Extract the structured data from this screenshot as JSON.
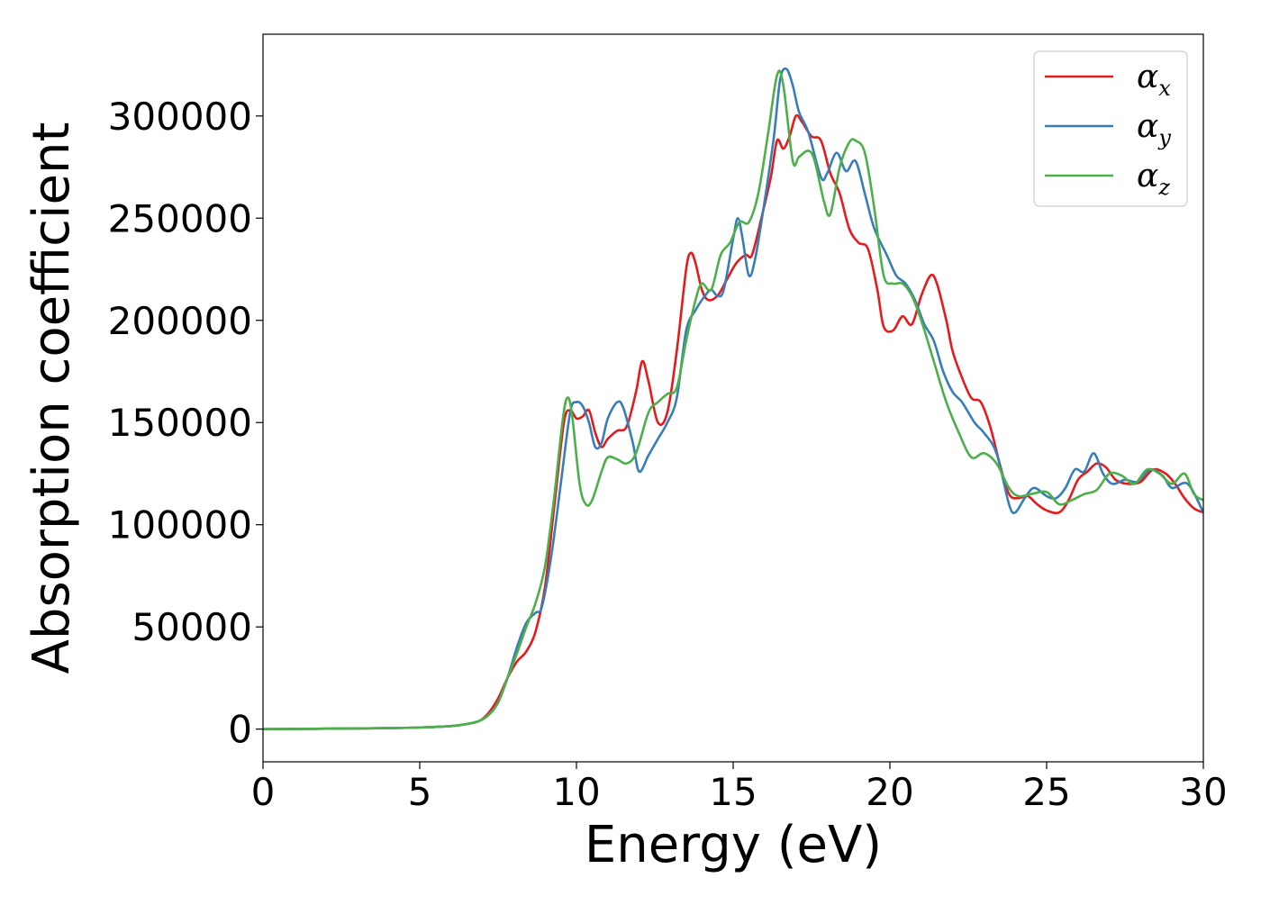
{
  "chart_data": {
    "type": "line",
    "title": "",
    "xlabel": "Energy (eV)",
    "ylabel": "Absorption coefficient",
    "xlim": [
      0,
      30
    ],
    "ylim": [
      -16000,
      340000
    ],
    "xticks": [
      0,
      5,
      10,
      15,
      20,
      25,
      30
    ],
    "yticks": [
      0,
      50000,
      100000,
      150000,
      200000,
      250000,
      300000
    ],
    "grid": false,
    "legend": {
      "placement": "top-right"
    },
    "series": [
      {
        "name": "αx",
        "symbol": "α",
        "subscript": "x",
        "color": "#e41a1c",
        "points": [
          [
            0,
            0
          ],
          [
            2,
            200
          ],
          [
            4,
            500
          ],
          [
            5,
            800
          ],
          [
            6,
            1500
          ],
          [
            6.5,
            2500
          ],
          [
            6.9,
            4000
          ],
          [
            7.2,
            8000
          ],
          [
            7.5,
            15000
          ],
          [
            7.8,
            25000
          ],
          [
            8.1,
            33000
          ],
          [
            8.4,
            38000
          ],
          [
            8.7,
            48000
          ],
          [
            9,
            70000
          ],
          [
            9.3,
            110000
          ],
          [
            9.6,
            150000
          ],
          [
            9.8,
            156000
          ],
          [
            10,
            152000
          ],
          [
            10.2,
            153000
          ],
          [
            10.4,
            156000
          ],
          [
            10.6,
            145000
          ],
          [
            10.8,
            138000
          ],
          [
            11,
            142000
          ],
          [
            11.3,
            146000
          ],
          [
            11.6,
            148000
          ],
          [
            11.9,
            165000
          ],
          [
            12.1,
            180000
          ],
          [
            12.3,
            170000
          ],
          [
            12.6,
            150000
          ],
          [
            12.9,
            155000
          ],
          [
            13.2,
            185000
          ],
          [
            13.5,
            225000
          ],
          [
            13.65,
            233000
          ],
          [
            13.8,
            228000
          ],
          [
            14,
            215000
          ],
          [
            14.2,
            210000
          ],
          [
            14.5,
            212000
          ],
          [
            14.8,
            220000
          ],
          [
            15.1,
            228000
          ],
          [
            15.4,
            232000
          ],
          [
            15.6,
            232000
          ],
          [
            15.9,
            250000
          ],
          [
            16.2,
            270000
          ],
          [
            16.4,
            288000
          ],
          [
            16.6,
            284000
          ],
          [
            16.8,
            290000
          ],
          [
            17,
            300000
          ],
          [
            17.2,
            297000
          ],
          [
            17.5,
            290000
          ],
          [
            17.8,
            288000
          ],
          [
            18.1,
            272000
          ],
          [
            18.4,
            262000
          ],
          [
            18.7,
            245000
          ],
          [
            19,
            238000
          ],
          [
            19.3,
            235000
          ],
          [
            19.6,
            215000
          ],
          [
            19.8,
            197000
          ],
          [
            20.1,
            195000
          ],
          [
            20.4,
            202000
          ],
          [
            20.7,
            198000
          ],
          [
            21,
            212000
          ],
          [
            21.3,
            222000
          ],
          [
            21.5,
            218000
          ],
          [
            21.8,
            200000
          ],
          [
            22,
            185000
          ],
          [
            22.3,
            172000
          ],
          [
            22.6,
            162000
          ],
          [
            22.9,
            160000
          ],
          [
            23.2,
            148000
          ],
          [
            23.5,
            130000
          ],
          [
            23.8,
            115000
          ],
          [
            24.1,
            113000
          ],
          [
            24.4,
            114000
          ],
          [
            24.7,
            110000
          ],
          [
            25,
            107000
          ],
          [
            25.4,
            106000
          ],
          [
            25.7,
            112000
          ],
          [
            26,
            122000
          ],
          [
            26.3,
            126000
          ],
          [
            26.6,
            130000
          ],
          [
            26.9,
            128000
          ],
          [
            27.2,
            122000
          ],
          [
            27.6,
            120000
          ],
          [
            28,
            121000
          ],
          [
            28.4,
            127000
          ],
          [
            28.8,
            125000
          ],
          [
            29.1,
            120000
          ],
          [
            29.4,
            113000
          ],
          [
            29.7,
            108000
          ],
          [
            30,
            106000
          ]
        ]
      },
      {
        "name": "αy",
        "symbol": "α",
        "subscript": "y",
        "color": "#377eb8",
        "points": [
          [
            0,
            0
          ],
          [
            2,
            200
          ],
          [
            4,
            500
          ],
          [
            5,
            800
          ],
          [
            6,
            1500
          ],
          [
            6.5,
            2500
          ],
          [
            6.9,
            4000
          ],
          [
            7.2,
            7000
          ],
          [
            7.5,
            13000
          ],
          [
            7.8,
            25000
          ],
          [
            8.1,
            40000
          ],
          [
            8.4,
            52000
          ],
          [
            8.7,
            57000
          ],
          [
            8.9,
            60000
          ],
          [
            9.2,
            85000
          ],
          [
            9.5,
            120000
          ],
          [
            9.8,
            155000
          ],
          [
            10,
            160000
          ],
          [
            10.2,
            158000
          ],
          [
            10.4,
            150000
          ],
          [
            10.6,
            138000
          ],
          [
            10.8,
            140000
          ],
          [
            11,
            152000
          ],
          [
            11.3,
            160000
          ],
          [
            11.5,
            157000
          ],
          [
            11.8,
            140000
          ],
          [
            12,
            126000
          ],
          [
            12.3,
            134000
          ],
          [
            12.6,
            142000
          ],
          [
            12.9,
            150000
          ],
          [
            13.2,
            162000
          ],
          [
            13.5,
            195000
          ],
          [
            13.8,
            205000
          ],
          [
            14.1,
            212000
          ],
          [
            14.3,
            215000
          ],
          [
            14.5,
            212000
          ],
          [
            14.7,
            215000
          ],
          [
            15,
            240000
          ],
          [
            15.15,
            250000
          ],
          [
            15.3,
            240000
          ],
          [
            15.5,
            222000
          ],
          [
            15.7,
            230000
          ],
          [
            16,
            258000
          ],
          [
            16.3,
            290000
          ],
          [
            16.5,
            318000
          ],
          [
            16.7,
            323000
          ],
          [
            16.9,
            315000
          ],
          [
            17.1,
            302000
          ],
          [
            17.4,
            292000
          ],
          [
            17.8,
            270000
          ],
          [
            18,
            272000
          ],
          [
            18.3,
            282000
          ],
          [
            18.6,
            273000
          ],
          [
            18.9,
            278000
          ],
          [
            19.2,
            262000
          ],
          [
            19.5,
            245000
          ],
          [
            19.9,
            232000
          ],
          [
            20.2,
            222000
          ],
          [
            20.5,
            218000
          ],
          [
            20.8,
            210000
          ],
          [
            21.1,
            198000
          ],
          [
            21.4,
            190000
          ],
          [
            21.7,
            175000
          ],
          [
            22,
            165000
          ],
          [
            22.3,
            160000
          ],
          [
            22.7,
            150000
          ],
          [
            23,
            145000
          ],
          [
            23.4,
            135000
          ],
          [
            23.8,
            110000
          ],
          [
            24,
            106000
          ],
          [
            24.3,
            113000
          ],
          [
            24.6,
            118000
          ],
          [
            25,
            114000
          ],
          [
            25.3,
            113000
          ],
          [
            25.6,
            118000
          ],
          [
            25.9,
            127000
          ],
          [
            26.2,
            126000
          ],
          [
            26.5,
            135000
          ],
          [
            26.8,
            125000
          ],
          [
            27.1,
            120000
          ],
          [
            27.5,
            122000
          ],
          [
            27.9,
            121000
          ],
          [
            28.3,
            127000
          ],
          [
            28.7,
            124000
          ],
          [
            29,
            118000
          ],
          [
            29.5,
            120000
          ],
          [
            30,
            106000
          ]
        ]
      },
      {
        "name": "αz",
        "symbol": "α",
        "subscript": "z",
        "color": "#4daf4a",
        "points": [
          [
            0,
            0
          ],
          [
            2,
            200
          ],
          [
            4,
            500
          ],
          [
            5,
            800
          ],
          [
            6,
            1500
          ],
          [
            6.5,
            2500
          ],
          [
            6.9,
            4000
          ],
          [
            7.2,
            7000
          ],
          [
            7.5,
            13000
          ],
          [
            7.8,
            25000
          ],
          [
            8.1,
            37000
          ],
          [
            8.4,
            50000
          ],
          [
            8.7,
            62000
          ],
          [
            9,
            80000
          ],
          [
            9.3,
            115000
          ],
          [
            9.55,
            150000
          ],
          [
            9.7,
            162000
          ],
          [
            9.85,
            155000
          ],
          [
            10.1,
            120000
          ],
          [
            10.3,
            110000
          ],
          [
            10.5,
            112000
          ],
          [
            10.8,
            126000
          ],
          [
            11,
            133000
          ],
          [
            11.3,
            132000
          ],
          [
            11.6,
            130000
          ],
          [
            11.9,
            135000
          ],
          [
            12.3,
            155000
          ],
          [
            12.6,
            160000
          ],
          [
            12.9,
            164000
          ],
          [
            13.2,
            167000
          ],
          [
            13.5,
            190000
          ],
          [
            13.8,
            210000
          ],
          [
            14,
            218000
          ],
          [
            14.3,
            215000
          ],
          [
            14.6,
            232000
          ],
          [
            14.9,
            238000
          ],
          [
            15.2,
            248000
          ],
          [
            15.5,
            248000
          ],
          [
            15.8,
            262000
          ],
          [
            16.1,
            290000
          ],
          [
            16.4,
            320000
          ],
          [
            16.6,
            315000
          ],
          [
            16.9,
            278000
          ],
          [
            17.1,
            280000
          ],
          [
            17.4,
            283000
          ],
          [
            17.6,
            278000
          ],
          [
            17.9,
            258000
          ],
          [
            18.1,
            252000
          ],
          [
            18.4,
            275000
          ],
          [
            18.7,
            287000
          ],
          [
            18.9,
            288000
          ],
          [
            19.2,
            282000
          ],
          [
            19.5,
            255000
          ],
          [
            19.8,
            222000
          ],
          [
            20.1,
            218000
          ],
          [
            20.4,
            218000
          ],
          [
            20.7,
            212000
          ],
          [
            21,
            200000
          ],
          [
            21.4,
            180000
          ],
          [
            21.8,
            160000
          ],
          [
            22.2,
            145000
          ],
          [
            22.6,
            133000
          ],
          [
            23,
            135000
          ],
          [
            23.4,
            130000
          ],
          [
            23.8,
            118000
          ],
          [
            24.1,
            114000
          ],
          [
            24.5,
            115000
          ],
          [
            25,
            116000
          ],
          [
            25.4,
            110000
          ],
          [
            25.8,
            112000
          ],
          [
            26.2,
            115000
          ],
          [
            26.6,
            117000
          ],
          [
            27,
            125000
          ],
          [
            27.4,
            124000
          ],
          [
            27.8,
            120000
          ],
          [
            28.2,
            127000
          ],
          [
            28.6,
            125000
          ],
          [
            29,
            120000
          ],
          [
            29.4,
            125000
          ],
          [
            29.7,
            115000
          ],
          [
            30,
            112000
          ]
        ]
      }
    ]
  }
}
